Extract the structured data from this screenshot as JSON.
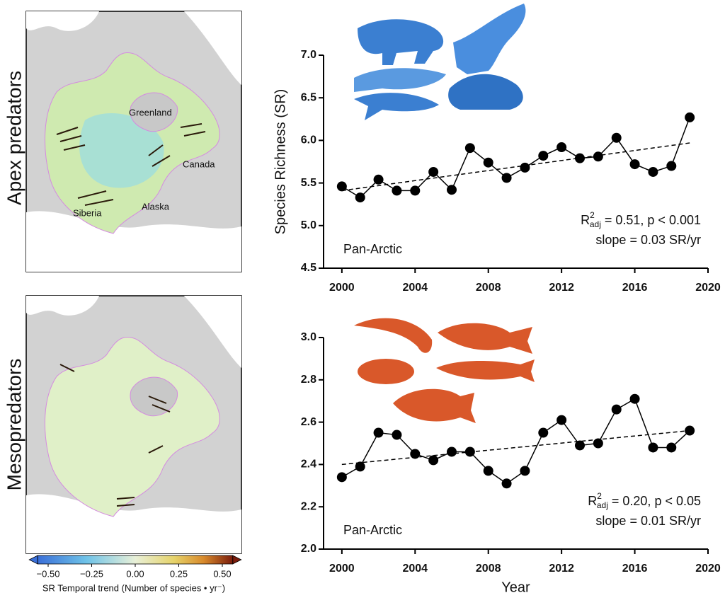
{
  "figure": {
    "row_labels": [
      "Apex predators",
      "Mesopredators"
    ],
    "map_labels": [
      "Greenland",
      "Canada",
      "Siberia",
      "Alaska"
    ],
    "colorbar": {
      "label": "SR Temporal trend (Number of species • yr⁻)",
      "lim": [
        -0.56,
        0.56
      ],
      "ticks": [
        {
          "value": -0.5,
          "label": "−0.50"
        },
        {
          "value": -0.25,
          "label": "−0.25"
        },
        {
          "value": 0,
          "label": "0.00"
        },
        {
          "value": 0.25,
          "label": "0.25"
        },
        {
          "value": 0.5,
          "label": "0.50"
        }
      ]
    }
  },
  "chart_data": [
    {
      "type": "line",
      "y_label": "Species Richness (SR)",
      "color": "#000000",
      "x": [
        2000,
        2001,
        2002,
        2003,
        2004,
        2005,
        2006,
        2007,
        2008,
        2009,
        2010,
        2011,
        2012,
        2013,
        2014,
        2015,
        2016,
        2017,
        2018,
        2019
      ],
      "values": [
        5.46,
        5.33,
        5.54,
        5.41,
        5.41,
        5.63,
        5.42,
        5.91,
        5.74,
        5.56,
        5.68,
        5.82,
        5.92,
        5.79,
        5.81,
        6.03,
        5.72,
        5.63,
        5.7,
        6.27
      ],
      "trend": {
        "x": [
          2000,
          2019
        ],
        "values": [
          5.41,
          5.97
        ]
      },
      "xlim": [
        1999,
        2020
      ],
      "xticks": [
        2000,
        2004,
        2008,
        2012,
        2016,
        2020
      ],
      "ylim": [
        4.5,
        7.0
      ],
      "yticks": [
        4.5,
        {
          "value": 5,
          "label": "5.0"
        },
        5.5,
        {
          "value": 6,
          "label": "6.0"
        },
        6.5,
        {
          "value": 7,
          "label": "7.0"
        }
      ],
      "annotations": {
        "region": "Pan-Arctic",
        "stat": {
          "symbol": "R",
          "sup": "2",
          "sub": "adj",
          "text": "= 0.51, p < 0.001"
        },
        "slope": "slope = 0.03 SR/yr"
      }
    },
    {
      "type": "line",
      "x_label": "Year",
      "color": "#000000",
      "x": [
        2000,
        2001,
        2002,
        2003,
        2004,
        2005,
        2006,
        2007,
        2008,
        2009,
        2010,
        2011,
        2012,
        2013,
        2014,
        2015,
        2016,
        2017,
        2018,
        2019
      ],
      "values": [
        2.34,
        2.39,
        2.55,
        2.54,
        2.45,
        2.42,
        2.46,
        2.46,
        2.37,
        2.31,
        2.37,
        2.55,
        2.61,
        2.49,
        2.5,
        2.66,
        2.71,
        2.48,
        2.48,
        2.56
      ],
      "trend": {
        "x": [
          2000,
          2019
        ],
        "values": [
          2.4,
          2.56
        ]
      },
      "xlim": [
        1999,
        2020
      ],
      "xticks": [
        2000,
        2004,
        2008,
        2012,
        2016,
        2020
      ],
      "ylim": [
        2.0,
        3.0
      ],
      "yticks": [
        {
          "value": 2,
          "label": "2.0"
        },
        2.2,
        2.4,
        2.6,
        2.8,
        {
          "value": 3,
          "label": "3.0"
        }
      ],
      "annotations": {
        "region": "Pan-Arctic",
        "stat": {
          "symbol": "R",
          "sup": "2",
          "sub": "adj",
          "text": "= 0.20, p < 0.05"
        },
        "slope": "slope = 0.01 SR/yr"
      }
    }
  ]
}
